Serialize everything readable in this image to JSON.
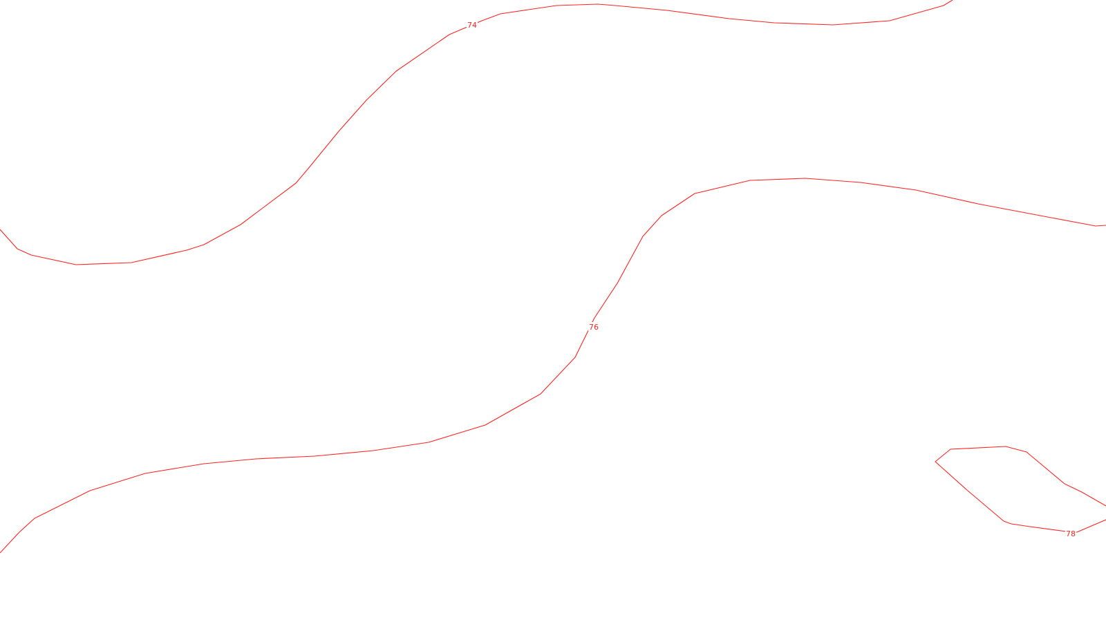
{
  "map": {
    "line_color": "#ff2222",
    "background_color": "#ffffff",
    "contours": [
      {
        "id": "contour-74",
        "label": "74"
      },
      {
        "id": "contour-76",
        "label": "76"
      },
      {
        "id": "contour-78",
        "label": "78"
      }
    ]
  }
}
